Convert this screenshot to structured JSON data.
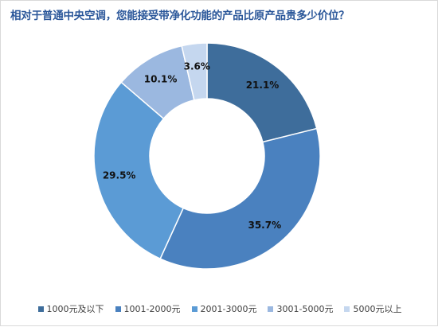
{
  "chart_data": {
    "type": "pie",
    "donut": true,
    "title": "相对于普通中央空调，您能接受带净化功能的产品比原产品贵多少价位？",
    "categories": [
      "1000元及以下",
      "1001-2000元",
      "2001-3000元",
      "3001-5000元",
      "5000元以上"
    ],
    "values": [
      21.1,
      35.7,
      29.5,
      10.1,
      3.6
    ],
    "value_labels": [
      "21.1%",
      "35.7%",
      "29.5%",
      "10.1%",
      "3.6%"
    ],
    "colors": [
      "#3e6d9b",
      "#4a81bf",
      "#5b9bd5",
      "#9bb8e0",
      "#c5d7ef"
    ],
    "legend_position": "bottom"
  }
}
